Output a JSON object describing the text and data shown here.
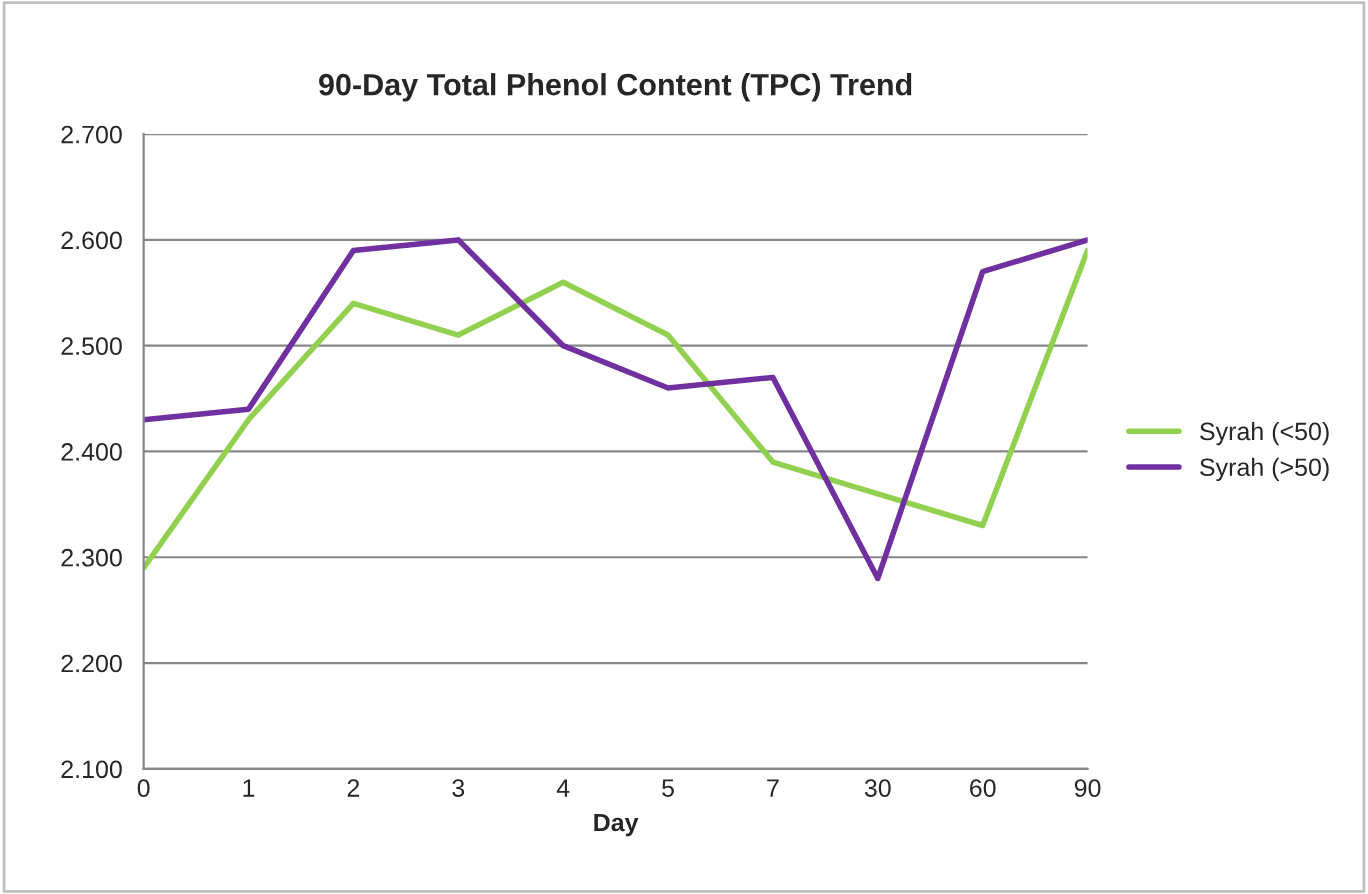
{
  "chart_data": {
    "type": "line",
    "title": "90-Day Total Phenol Content (TPC) Trend",
    "xlabel": "Day",
    "categories": [
      "0",
      "1",
      "2",
      "3",
      "4",
      "5",
      "7",
      "30",
      "60",
      "90"
    ],
    "series": [
      {
        "name": "Syrah (<50)",
        "color": "#92d050",
        "values": [
          2.29,
          2.43,
          2.54,
          2.51,
          2.56,
          2.51,
          2.39,
          2.36,
          2.33,
          2.59
        ]
      },
      {
        "name": "Syrah (>50)",
        "color": "#7030a0",
        "values": [
          2.43,
          2.44,
          2.59,
          2.6,
          2.5,
          2.46,
          2.47,
          2.28,
          2.57,
          2.6
        ]
      }
    ],
    "ylim": [
      2.1,
      2.7
    ],
    "yticks": [
      {
        "value": 2.1,
        "label": "2.100"
      },
      {
        "value": 2.2,
        "label": "2.200"
      },
      {
        "value": 2.3,
        "label": "2.300"
      },
      {
        "value": 2.4,
        "label": "2.400"
      },
      {
        "value": 2.5,
        "label": "2.500"
      },
      {
        "value": 2.6,
        "label": "2.600"
      },
      {
        "value": 2.7,
        "label": "2.700"
      }
    ],
    "grid": "y",
    "legend": "right",
    "marker": "none",
    "line_style": "solid"
  }
}
